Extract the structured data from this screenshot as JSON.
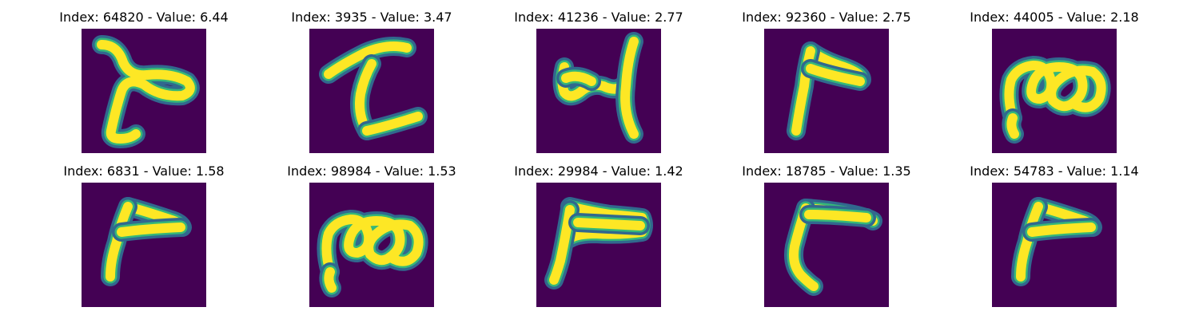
{
  "colors": {
    "background": "#440154",
    "low": "#31688e",
    "mid": "#35b779",
    "high": "#fde725"
  },
  "panels": [
    {
      "title": "Index: 64820 - Value: 6.44",
      "glyph": "hook-stroke"
    },
    {
      "title": "Index: 3935 - Value: 3.47",
      "glyph": "z-like"
    },
    {
      "title": "Index: 41236 - Value: 2.77",
      "glyph": "four"
    },
    {
      "title": "Index: 92360 - Value: 2.75",
      "glyph": "seven-like"
    },
    {
      "title": "Index: 44005 - Value: 2.18",
      "glyph": "double-loop"
    },
    {
      "title": "Index: 6831 - Value: 1.58",
      "glyph": "bent-stroke"
    },
    {
      "title": "Index: 98984 - Value: 1.53",
      "glyph": "double-loop"
    },
    {
      "title": "Index: 29984 - Value: 1.42",
      "glyph": "flag-stroke"
    },
    {
      "title": "Index: 18785 - Value: 1.35",
      "glyph": "bracket-stroke"
    },
    {
      "title": "Index: 54783 - Value: 1.14",
      "glyph": "bent-stroke"
    }
  ]
}
